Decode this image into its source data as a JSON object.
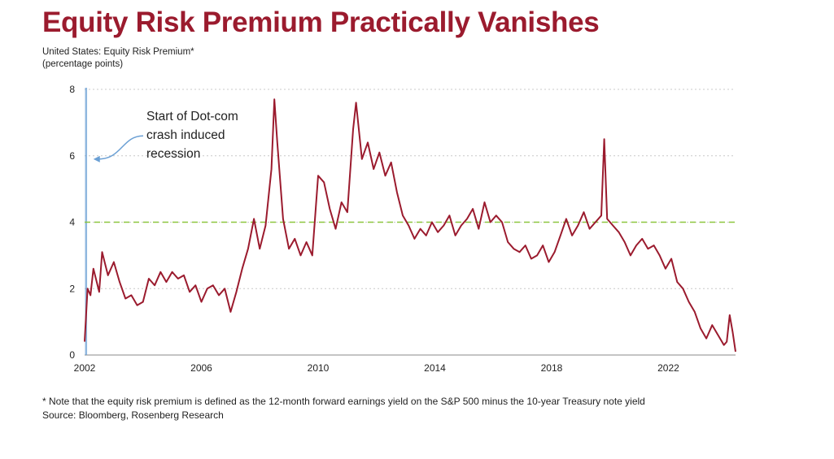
{
  "title": "Equity Risk Premium Practically Vanishes",
  "subtitle": "United States: Equity Risk Premium*",
  "subtitle_units": "(percentage points)",
  "footnote": "* Note that the equity risk premium is defined as the 12-month forward earnings yield on the S&P 500 minus the 10-year Treasury note yield",
  "source": "Source: Bloomberg, Rosenberg Research",
  "colors": {
    "title": "#9b1b2e",
    "series": "#9b1b2e",
    "reference": "#8cc63f",
    "marker": "#6a9fd4",
    "grid": "#c8c8c8"
  },
  "chart_data": {
    "type": "line",
    "xlim": [
      2002,
      2024.3
    ],
    "ylim": [
      0,
      8
    ],
    "x_ticks": [
      "2002",
      "2006",
      "2010",
      "2014",
      "2018",
      "2022"
    ],
    "y_ticks": [
      "0",
      "2",
      "4",
      "6",
      "8"
    ],
    "grid": "horizontal dotted",
    "reference_line": {
      "y": 4,
      "style": "dashed"
    },
    "marker_line": {
      "x": 2002.05
    },
    "annotation": {
      "lines": [
        "Start of Dot-com",
        "crash induced",
        "recession"
      ],
      "points_to": [
        2002.3,
        5.9
      ]
    },
    "series": [
      {
        "x": [
          2002.0,
          2002.1,
          2002.2,
          2002.3,
          2002.5,
          2002.6,
          2002.8,
          2003.0,
          2003.2,
          2003.4,
          2003.6,
          2003.8,
          2004.0,
          2004.2,
          2004.4,
          2004.6,
          2004.8,
          2005.0,
          2005.2,
          2005.4,
          2005.6,
          2005.8,
          2006.0,
          2006.2,
          2006.4,
          2006.6,
          2006.8,
          2007.0,
          2007.2,
          2007.4,
          2007.6,
          2007.8,
          2008.0,
          2008.2,
          2008.4,
          2008.5,
          2008.6,
          2008.8,
          2009.0,
          2009.2,
          2009.4,
          2009.6,
          2009.8,
          2010.0,
          2010.2,
          2010.4,
          2010.6,
          2010.8,
          2011.0,
          2011.2,
          2011.3,
          2011.5,
          2011.7,
          2011.9,
          2012.1,
          2012.3,
          2012.5,
          2012.7,
          2012.9,
          2013.1,
          2013.3,
          2013.5,
          2013.7,
          2013.9,
          2014.1,
          2014.3,
          2014.5,
          2014.7,
          2014.9,
          2015.1,
          2015.3,
          2015.5,
          2015.7,
          2015.9,
          2016.1,
          2016.3,
          2016.5,
          2016.7,
          2016.9,
          2017.1,
          2017.3,
          2017.5,
          2017.7,
          2017.9,
          2018.1,
          2018.3,
          2018.5,
          2018.7,
          2018.9,
          2019.1,
          2019.3,
          2019.5,
          2019.7,
          2019.8,
          2019.9,
          2020.1,
          2020.3,
          2020.5,
          2020.7,
          2020.9,
          2021.1,
          2021.3,
          2021.5,
          2021.7,
          2021.9,
          2022.1,
          2022.3,
          2022.5,
          2022.7,
          2022.9,
          2023.1,
          2023.3,
          2023.5,
          2023.7,
          2023.9,
          2024.0,
          2024.1,
          2024.2,
          2024.3
        ],
        "y": [
          0.4,
          2.0,
          1.8,
          2.6,
          1.9,
          3.1,
          2.4,
          2.8,
          2.2,
          1.7,
          1.8,
          1.5,
          1.6,
          2.3,
          2.1,
          2.5,
          2.2,
          2.5,
          2.3,
          2.4,
          1.9,
          2.1,
          1.6,
          2.0,
          2.1,
          1.8,
          2.0,
          1.3,
          1.9,
          2.6,
          3.2,
          4.1,
          3.2,
          3.9,
          5.6,
          7.7,
          6.4,
          4.1,
          3.2,
          3.5,
          3.0,
          3.4,
          3.0,
          5.4,
          5.2,
          4.4,
          3.8,
          4.6,
          4.3,
          6.8,
          7.6,
          5.9,
          6.4,
          5.6,
          6.1,
          5.4,
          5.8,
          4.9,
          4.2,
          3.9,
          3.5,
          3.8,
          3.6,
          4.0,
          3.7,
          3.9,
          4.2,
          3.6,
          3.9,
          4.1,
          4.4,
          3.8,
          4.6,
          4.0,
          4.2,
          4.0,
          3.4,
          3.2,
          3.1,
          3.3,
          2.9,
          3.0,
          3.3,
          2.8,
          3.1,
          3.6,
          4.1,
          3.6,
          3.9,
          4.3,
          3.8,
          4.0,
          4.2,
          6.5,
          4.1,
          3.9,
          3.7,
          3.4,
          3.0,
          3.3,
          3.5,
          3.2,
          3.3,
          3.0,
          2.6,
          2.9,
          2.2,
          2.0,
          1.6,
          1.3,
          0.8,
          0.5,
          0.9,
          0.6,
          0.3,
          0.4,
          1.2,
          0.7,
          0.1
        ]
      }
    ]
  }
}
